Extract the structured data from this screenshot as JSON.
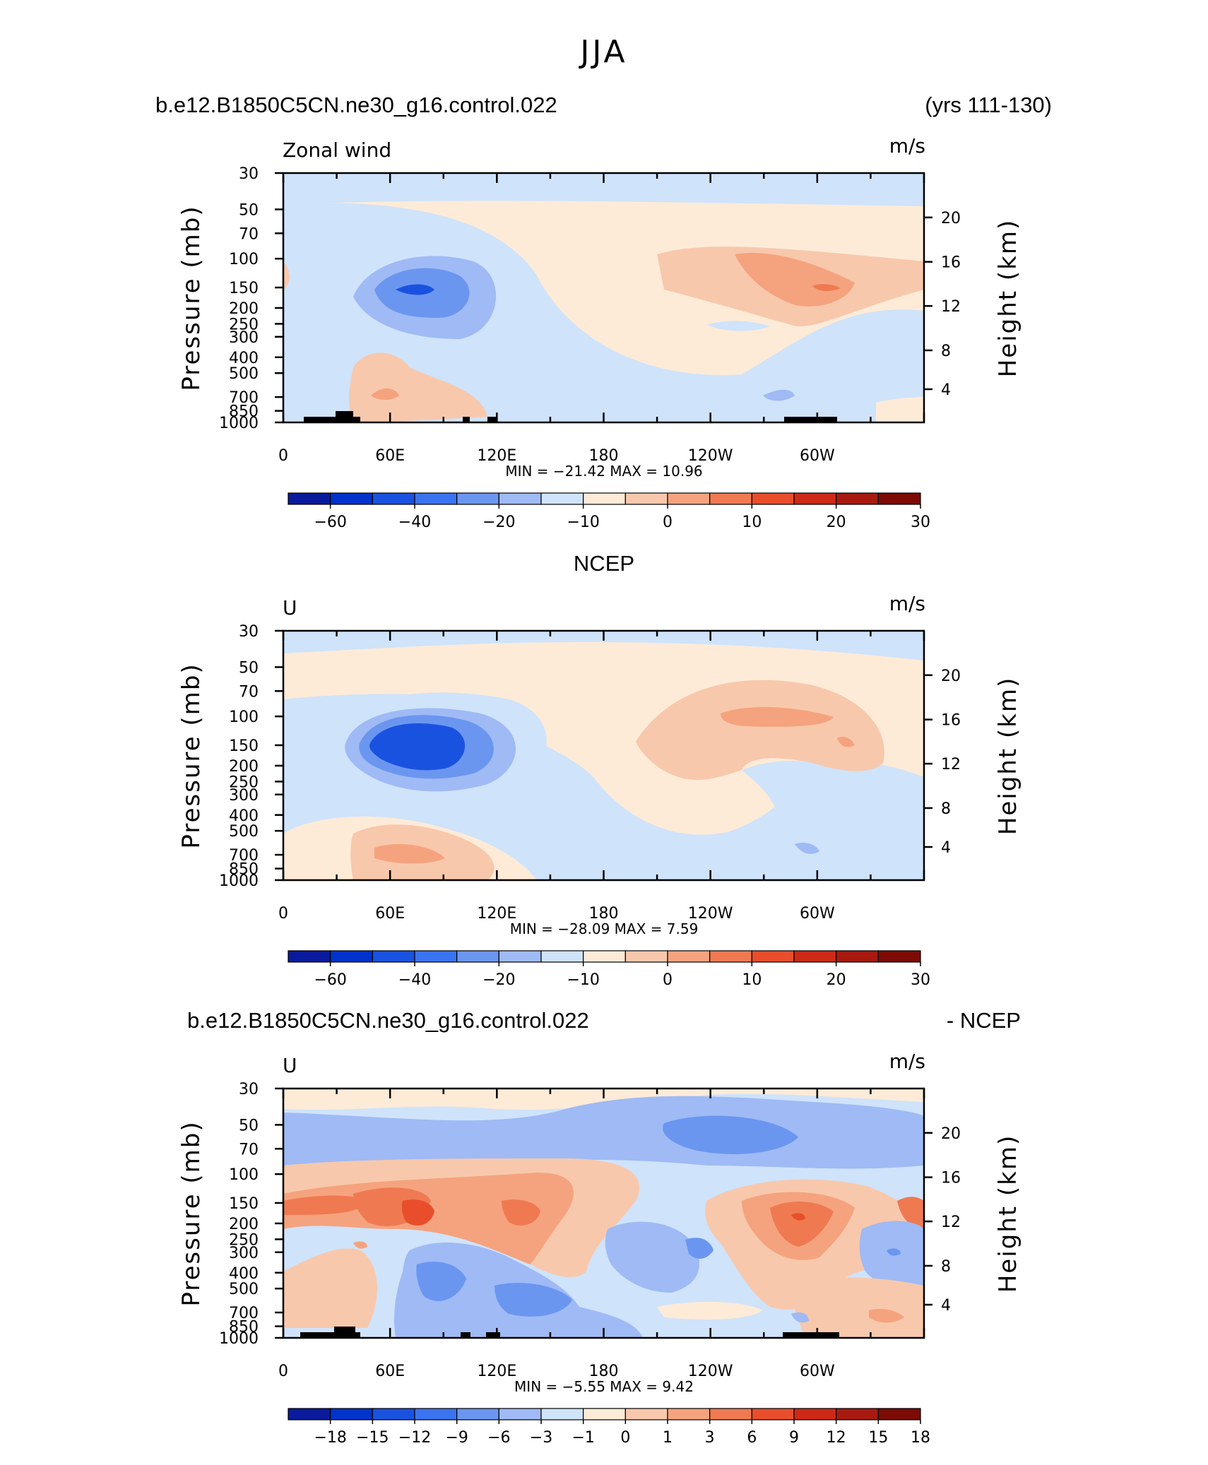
{
  "main_title": "JJA",
  "colorbar_colors": [
    "#0a1a9c",
    "#0033cc",
    "#1a52e0",
    "#3b74f0",
    "#6b96f0",
    "#9fbaf5",
    "#cfe3fa",
    "#fdebd8",
    "#f8c8ac",
    "#f5a37e",
    "#ef7a52",
    "#e84e2c",
    "#cc2a17",
    "#a81a10",
    "#7d0b05"
  ],
  "chart_data": [
    {
      "type": "heatmap",
      "panel_title_left": "b.e12.B1850C5CN.ne30_g16.control.022",
      "panel_title_right": "(yrs 111-130)",
      "variable": "Zonal wind",
      "units": "m/s",
      "ylabel": "Pressure (mb)",
      "ylabel_right": "Height (km)",
      "y_ticks": [
        "30",
        "50",
        "70",
        "100",
        "150",
        "200",
        "250",
        "300",
        "400",
        "500",
        "700",
        "850",
        "1000"
      ],
      "y_ticks_right": [
        "20",
        "16",
        "12",
        "8",
        "4"
      ],
      "x_ticks": [
        "0",
        "60E",
        "120E",
        "180",
        "120W",
        "60W"
      ],
      "stats": "MIN = −21.42   MAX =   10.96",
      "min": -21.42,
      "max": 10.96,
      "colorbar_labels": [
        "−60",
        "−40",
        "−20",
        "−10",
        "0",
        "10",
        "20",
        "30"
      ]
    },
    {
      "type": "heatmap",
      "panel_title_left": "",
      "panel_title_center": "NCEP",
      "panel_title_right": "",
      "variable": "U",
      "units": "m/s",
      "ylabel": "Pressure (mb)",
      "ylabel_right": "Height (km)",
      "y_ticks": [
        "30",
        "50",
        "70",
        "100",
        "150",
        "200",
        "250",
        "300",
        "400",
        "500",
        "700",
        "850",
        "1000"
      ],
      "y_ticks_right": [
        "20",
        "16",
        "12",
        "8",
        "4"
      ],
      "x_ticks": [
        "0",
        "60E",
        "120E",
        "180",
        "120W",
        "60W"
      ],
      "stats": "MIN = −28.09   MAX =    7.59",
      "min": -28.09,
      "max": 7.59,
      "colorbar_labels": [
        "−60",
        "−40",
        "−20",
        "−10",
        "0",
        "10",
        "20",
        "30"
      ]
    },
    {
      "type": "heatmap",
      "panel_title_left": "b.e12.B1850C5CN.ne30_g16.control.022",
      "panel_title_right": "- NCEP",
      "variable": "U",
      "units": "m/s",
      "ylabel": "Pressure (mb)",
      "ylabel_right": "Height (km)",
      "y_ticks": [
        "30",
        "50",
        "70",
        "100",
        "150",
        "200",
        "250",
        "300",
        "400",
        "500",
        "700",
        "850",
        "1000"
      ],
      "y_ticks_right": [
        "20",
        "16",
        "12",
        "8",
        "4"
      ],
      "x_ticks": [
        "0",
        "60E",
        "120E",
        "180",
        "120W",
        "60W"
      ],
      "stats": "MIN =   −5.55   MAX =    9.42",
      "min": -5.55,
      "max": 9.42,
      "colorbar_labels": [
        "−18",
        "−15",
        "−12",
        "−9",
        "−6",
        "−3",
        "−1",
        "0",
        "1",
        "3",
        "6",
        "9",
        "12",
        "15",
        "18"
      ]
    }
  ]
}
